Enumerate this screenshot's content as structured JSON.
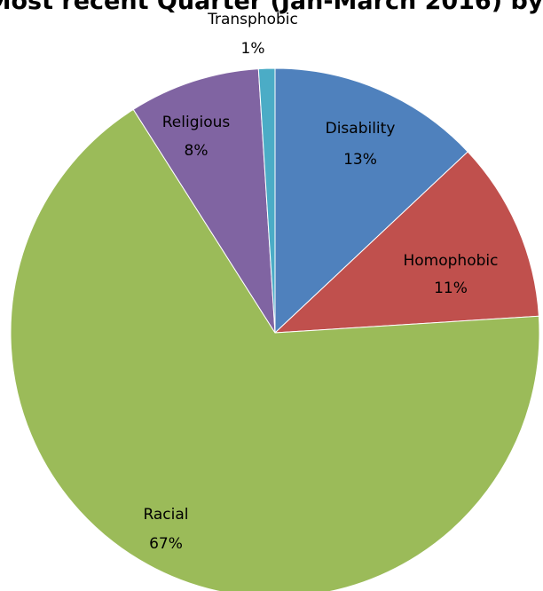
{
  "chart_data": {
    "type": "pie",
    "title": "Most recent Quarter (Jan-March 2016) by",
    "slices": [
      {
        "label": "Disability",
        "value": 13,
        "display": "13%",
        "color": "#4f81bd"
      },
      {
        "label": "Homophobic",
        "value": 11,
        "display": "11%",
        "color": "#c0504d"
      },
      {
        "label": "Racial",
        "value": 67,
        "display": "67%",
        "color": "#9bbb59"
      },
      {
        "label": "Religious",
        "value": 8,
        "display": "8%",
        "color": "#8064a2"
      },
      {
        "label": "Transphobic",
        "value": 1,
        "display": "1%",
        "color": "#4bacc6"
      }
    ],
    "legend": "none",
    "data_labels": "category and percentage"
  }
}
